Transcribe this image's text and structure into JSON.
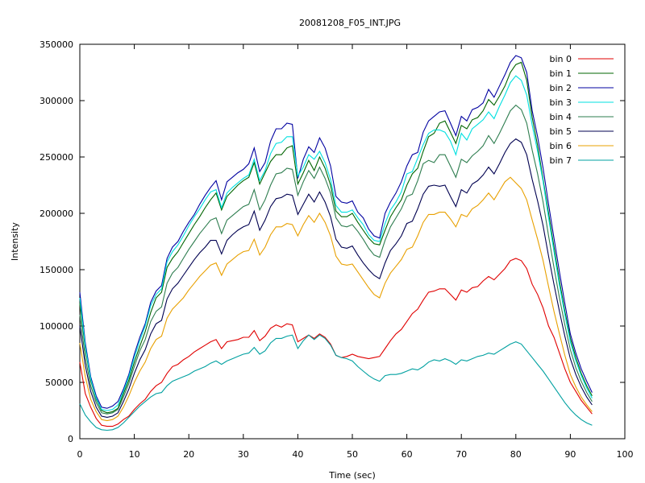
{
  "chart_data": {
    "type": "line",
    "title": "20081208_F05_INT.JPG",
    "xlabel": "Time (sec)",
    "ylabel": "Intensity",
    "xlim": [
      0,
      100
    ],
    "ylim": [
      0,
      350000
    ],
    "x_ticks": [
      0,
      10,
      20,
      30,
      40,
      50,
      60,
      70,
      80,
      90,
      100
    ],
    "y_ticks": [
      0,
      50000,
      100000,
      150000,
      200000,
      250000,
      300000,
      350000
    ],
    "grid": false,
    "legend_position": "top-right",
    "x": [
      0,
      1,
      2,
      3,
      4,
      5,
      6,
      7,
      8,
      9,
      10,
      11,
      12,
      13,
      14,
      15,
      16,
      17,
      18,
      19,
      20,
      21,
      22,
      23,
      24,
      25,
      26,
      27,
      28,
      29,
      30,
      31,
      32,
      33,
      34,
      35,
      36,
      37,
      38,
      39,
      40,
      41,
      42,
      43,
      44,
      45,
      46,
      47,
      48,
      49,
      50,
      51,
      52,
      53,
      54,
      55,
      56,
      57,
      58,
      59,
      60,
      61,
      62,
      63,
      64,
      65,
      66,
      67,
      68,
      69,
      70,
      71,
      72,
      73,
      74,
      75,
      76,
      77,
      78,
      79,
      80,
      81,
      82,
      83,
      84,
      85,
      86,
      87,
      88,
      89,
      90,
      91,
      92,
      93,
      94
    ],
    "series": [
      {
        "name": "bin 0",
        "color": "#e00000",
        "values": [
          68000,
          40000,
          28000,
          18000,
          12000,
          11000,
          11000,
          13000,
          17000,
          20000,
          26000,
          31000,
          35000,
          42000,
          47000,
          50000,
          58000,
          64000,
          66000,
          70000,
          73000,
          77000,
          80000,
          83000,
          86000,
          88000,
          80000,
          86000,
          87000,
          88000,
          90000,
          90000,
          96000,
          87000,
          91000,
          98000,
          101000,
          99000,
          102000,
          101000,
          86000,
          89000,
          92000,
          89000,
          93000,
          90000,
          84000,
          74000,
          72000,
          73000,
          75000,
          73000,
          72000,
          71000,
          72000,
          73000,
          80000,
          87000,
          93000,
          97000,
          104000,
          111000,
          115000,
          123000,
          130000,
          131000,
          133000,
          133000,
          128000,
          123000,
          132000,
          130000,
          134000,
          135000,
          140000,
          144000,
          141000,
          146000,
          151000,
          158000,
          160000,
          158000,
          151000,
          137000,
          128000,
          116000,
          100000,
          90000,
          76000,
          62000,
          50000,
          42000,
          34000,
          28000,
          22000
        ]
      },
      {
        "name": "bin 1",
        "color": "#006400",
        "values": [
          120000,
          80000,
          52000,
          35000,
          25000,
          23000,
          24000,
          27000,
          40000,
          52000,
          68000,
          82000,
          95000,
          112000,
          125000,
          130000,
          152000,
          160000,
          166000,
          174000,
          182000,
          190000,
          197000,
          205000,
          212000,
          218000,
          203000,
          215000,
          220000,
          225000,
          229000,
          232000,
          245000,
          226000,
          236000,
          246000,
          252000,
          252000,
          258000,
          260000,
          226000,
          236000,
          247000,
          238000,
          250000,
          240000,
          225000,
          202000,
          197000,
          197000,
          200000,
          192000,
          185000,
          178000,
          173000,
          172000,
          185000,
          197000,
          205000,
          212000,
          225000,
          235000,
          240000,
          255000,
          268000,
          271000,
          280000,
          282000,
          272000,
          262000,
          278000,
          275000,
          283000,
          285000,
          291000,
          301000,
          296000,
          304000,
          313000,
          325000,
          332000,
          334000,
          318000,
          285000,
          260000,
          230000,
          200000,
          170000,
          140000,
          113000,
          89000,
          72000,
          58000,
          47000,
          38000
        ]
      },
      {
        "name": "bin 2",
        "color": "#0000a0",
        "values": [
          130000,
          85000,
          55000,
          38000,
          28000,
          27000,
          29000,
          33000,
          44000,
          57000,
          75000,
          90000,
          102000,
          121000,
          131000,
          136000,
          160000,
          170000,
          175000,
          184000,
          192000,
          199000,
          208000,
          216000,
          223000,
          229000,
          212000,
          228000,
          232000,
          236000,
          239000,
          244000,
          258000,
          237000,
          245000,
          264000,
          275000,
          275000,
          280000,
          279000,
          231000,
          248000,
          259000,
          254000,
          267000,
          258000,
          242000,
          215000,
          210000,
          209000,
          211000,
          201000,
          196000,
          186000,
          180000,
          178000,
          200000,
          210000,
          218000,
          228000,
          242000,
          252000,
          254000,
          272000,
          282000,
          286000,
          290000,
          291000,
          280000,
          269000,
          286000,
          282000,
          292000,
          294000,
          298000,
          310000,
          303000,
          313000,
          323000,
          334000,
          340000,
          338000,
          325000,
          291000,
          268000,
          240000,
          208000,
          178000,
          148000,
          120000,
          93000,
          76000,
          62000,
          51000,
          41000
        ]
      },
      {
        "name": "bin 3",
        "color": "#00e0e0",
        "values": [
          125000,
          82000,
          53000,
          36000,
          26000,
          25000,
          26000,
          30000,
          42000,
          55000,
          72000,
          87000,
          100000,
          118000,
          128000,
          133000,
          157000,
          166000,
          172000,
          180000,
          189000,
          197000,
          204000,
          212000,
          219000,
          221000,
          205000,
          218000,
          223000,
          227000,
          231000,
          234000,
          248000,
          229000,
          238000,
          253000,
          262000,
          263000,
          268000,
          268000,
          233000,
          241000,
          252000,
          248000,
          255000,
          245000,
          230000,
          207000,
          201000,
          201000,
          203000,
          196000,
          190000,
          181000,
          176000,
          175000,
          191000,
          203000,
          210000,
          219000,
          235000,
          237000,
          249000,
          261000,
          271000,
          274000,
          274000,
          272000,
          264000,
          252000,
          271000,
          265000,
          275000,
          279000,
          283000,
          290000,
          284000,
          295000,
          305000,
          316000,
          322000,
          318000,
          305000,
          278000,
          255000,
          228000,
          196000,
          166000,
          136000,
          110000,
          86000,
          69000,
          56000,
          45000,
          36000
        ]
      },
      {
        "name": "bin 4",
        "color": "#2e7d4f",
        "values": [
          110000,
          72000,
          47000,
          32000,
          23000,
          22000,
          23000,
          26000,
          37000,
          49000,
          64000,
          78000,
          88000,
          104000,
          113000,
          117000,
          138000,
          147000,
          152000,
          160000,
          168000,
          175000,
          182000,
          188000,
          194000,
          196000,
          182000,
          194000,
          198000,
          202000,
          206000,
          208000,
          221000,
          203000,
          212000,
          225000,
          235000,
          236000,
          240000,
          239000,
          216000,
          228000,
          238000,
          231000,
          241000,
          231000,
          218000,
          196000,
          189000,
          188000,
          190000,
          184000,
          177000,
          169000,
          163000,
          161000,
          176000,
          188000,
          196000,
          204000,
          215000,
          217000,
          229000,
          244000,
          247000,
          245000,
          252000,
          252000,
          242000,
          232000,
          248000,
          245000,
          251000,
          255000,
          260000,
          269000,
          262000,
          271000,
          281000,
          291000,
          296000,
          292000,
          280000,
          256000,
          235000,
          210000,
          180000,
          152000,
          125000,
          101000,
          79000,
          63000,
          51000,
          41000,
          33000
        ]
      },
      {
        "name": "bin 5",
        "color": "#000050",
        "values": [
          100000,
          65000,
          42000,
          28000,
          20000,
          19000,
          20000,
          23000,
          33000,
          44000,
          58000,
          70000,
          79000,
          93000,
          102000,
          105000,
          124000,
          133000,
          138000,
          145000,
          152000,
          159000,
          165000,
          170000,
          176000,
          176000,
          164000,
          176000,
          181000,
          185000,
          188000,
          190000,
          202000,
          185000,
          194000,
          206000,
          213000,
          214000,
          217000,
          216000,
          199000,
          208000,
          217000,
          210000,
          219000,
          210000,
          197000,
          177000,
          170000,
          169000,
          171000,
          163000,
          156000,
          150000,
          145000,
          142000,
          156000,
          167000,
          173000,
          180000,
          191000,
          193000,
          204000,
          217000,
          224000,
          225000,
          224000,
          225000,
          215000,
          206000,
          221000,
          218000,
          226000,
          229000,
          234000,
          241000,
          235000,
          244000,
          254000,
          262000,
          266000,
          263000,
          252000,
          230000,
          211000,
          189000,
          162000,
          137000,
          113000,
          91000,
          71000,
          57000,
          46000,
          37000,
          30000
        ]
      },
      {
        "name": "bin 6",
        "color": "#e8a000",
        "values": [
          85000,
          55000,
          35000,
          24000,
          17000,
          16000,
          17000,
          20000,
          28000,
          38000,
          50000,
          60000,
          68000,
          80000,
          88000,
          91000,
          107000,
          115000,
          120000,
          125000,
          132000,
          138000,
          144000,
          149000,
          154000,
          156000,
          145000,
          155000,
          159000,
          163000,
          166000,
          167000,
          177000,
          163000,
          170000,
          181000,
          188000,
          188000,
          191000,
          190000,
          180000,
          190000,
          198000,
          192000,
          200000,
          192000,
          180000,
          162000,
          155000,
          154000,
          155000,
          148000,
          141000,
          134000,
          128000,
          125000,
          138000,
          147000,
          153000,
          159000,
          168000,
          170000,
          180000,
          192000,
          199000,
          199000,
          201000,
          201000,
          195000,
          188000,
          199000,
          197000,
          204000,
          207000,
          212000,
          218000,
          212000,
          220000,
          228000,
          232000,
          227000,
          222000,
          212000,
          194000,
          177000,
          158000,
          135000,
          113000,
          93000,
          74000,
          57000,
          46000,
          37000,
          30000,
          24000
        ]
      },
      {
        "name": "bin 7",
        "color": "#00a0a0",
        "values": [
          31000,
          21000,
          15000,
          10000,
          8000,
          7500,
          8000,
          10000,
          14000,
          19000,
          24000,
          29000,
          33000,
          37000,
          40000,
          41000,
          47000,
          51000,
          53000,
          55000,
          57000,
          60000,
          62000,
          64000,
          67000,
          69000,
          66000,
          69000,
          71000,
          73000,
          75000,
          76000,
          81000,
          75000,
          78000,
          85000,
          89000,
          89000,
          91000,
          92000,
          80000,
          87000,
          92000,
          88000,
          92000,
          89000,
          83000,
          74000,
          72000,
          71000,
          69000,
          64000,
          60000,
          56000,
          53000,
          51000,
          56000,
          57000,
          57000,
          58000,
          60000,
          62000,
          61000,
          64000,
          68000,
          70000,
          69000,
          71000,
          69000,
          66000,
          70000,
          69000,
          71000,
          73000,
          74000,
          76000,
          75000,
          78000,
          81000,
          84000,
          86000,
          84000,
          78000,
          72000,
          66000,
          60000,
          53000,
          46000,
          39000,
          32000,
          26000,
          21000,
          17000,
          14000,
          12000
        ]
      }
    ]
  }
}
